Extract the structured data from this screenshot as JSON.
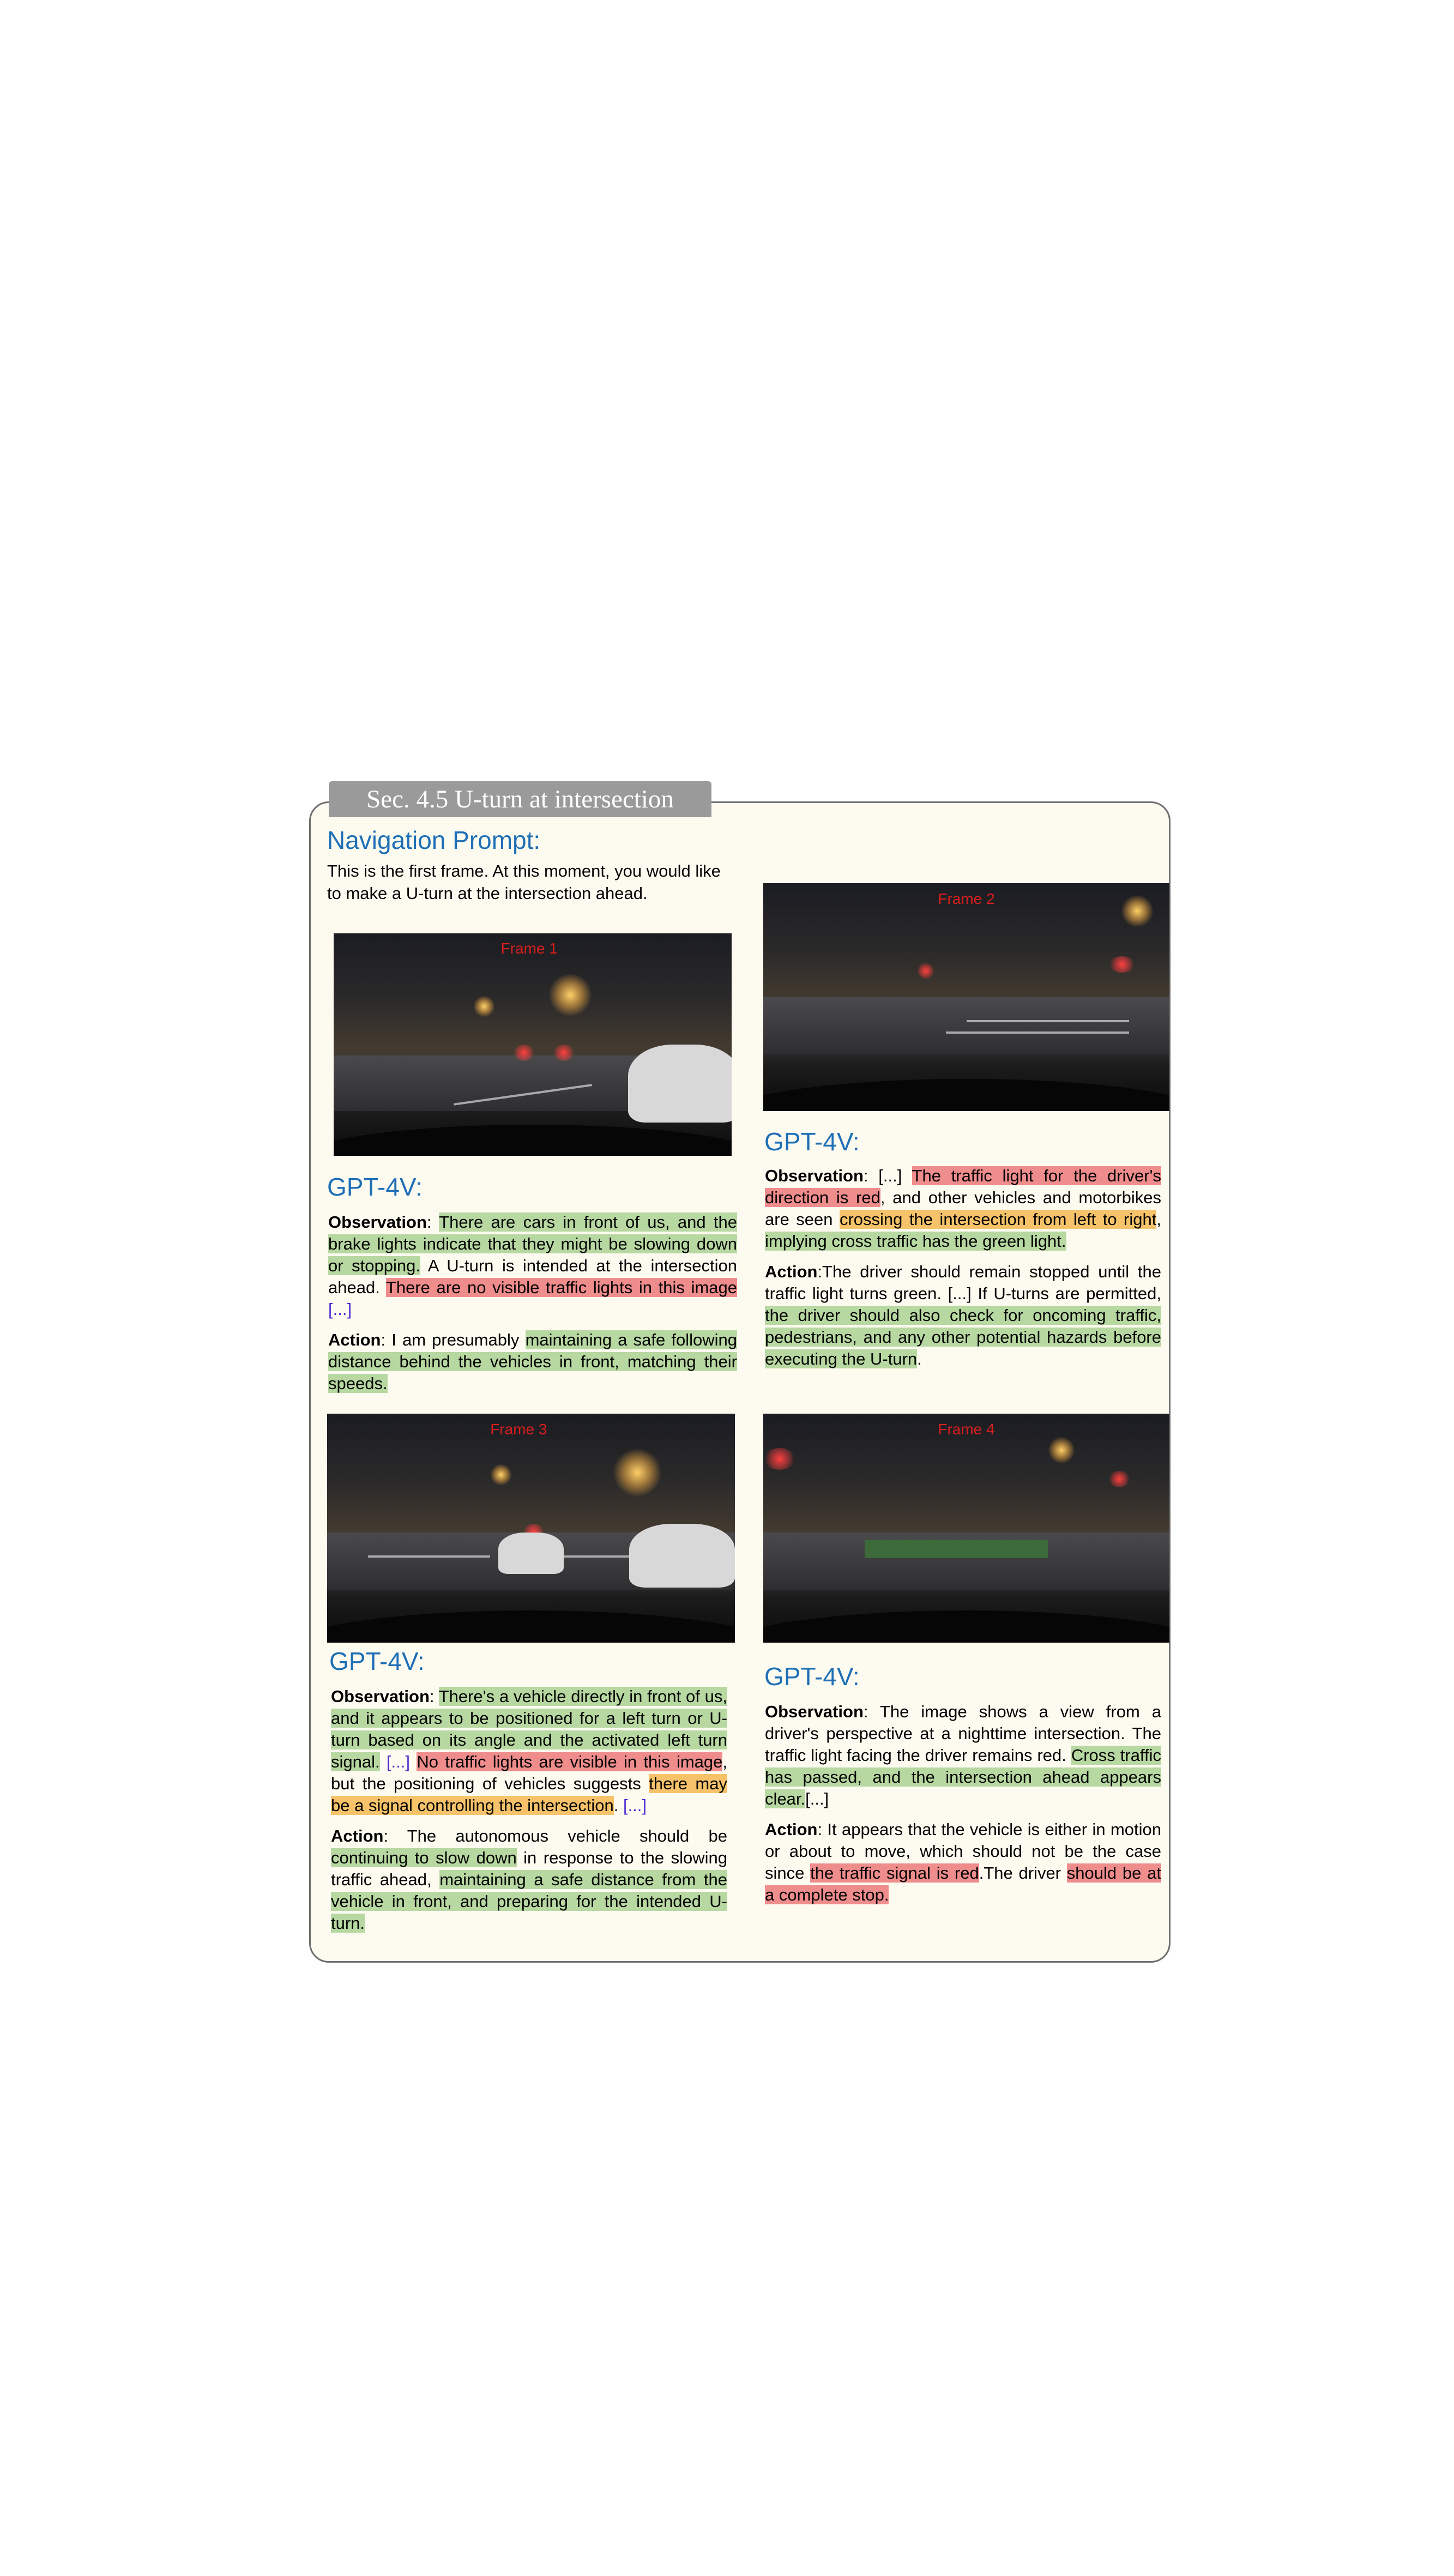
{
  "section_tab": "Sec. 4.5 U-turn at intersection",
  "nav_heading": "Navigation Prompt:",
  "prompt_text": "This is the first frame. At this moment, you would like to make a U-turn at the intersection ahead.",
  "gpt_label": "GPT-4V:",
  "frames": {
    "f1": "Frame 1",
    "f2": "Frame 2",
    "f3": "Frame 3",
    "f4": "Frame 4"
  },
  "r1": {
    "obs_label": "Observation",
    "obs": [
      ":",
      " ",
      "There are cars in front of us, and the brake lights indicate that they might be slowing down or stopping.",
      " A U-turn is intended at the intersection ahead. ",
      "There are no visible traffic lights in this image",
      " ",
      "[...]"
    ],
    "act_label": "Action",
    "act": [
      ": I am presumably ",
      "maintaining a safe following distance behind the vehicles in front, matching their speeds."
    ]
  },
  "r2": {
    "obs_label": "Observation",
    "obs": [
      ": ",
      "[...]",
      " ",
      "The traffic light for the driver's direction is red",
      ", and other vehicles and motorbikes are seen ",
      "crossing the intersection from left to right",
      ", ",
      "implying cross traffic has the green light."
    ],
    "act_label": "Action",
    "act": [
      ":The driver should remain stopped until the traffic light turns green. [...] If U-turns are permitted, ",
      "the driver should also check for oncoming traffic, pedestrians, and any other potential hazards before executing the U-turn",
      "."
    ]
  },
  "r3": {
    "obs_label": "Observation",
    "obs": [
      ": ",
      "There's a vehicle directly in front of us, and it appears to be positioned for a left turn or U-turn based on its angle and the activated left turn signal.",
      " ",
      "[...]",
      " ",
      "No traffic lights are visible in this image",
      ", but the positioning of vehicles suggests ",
      "there may be a signal controlling the intersection",
      ". ",
      "[...]"
    ],
    "act_label": "Action",
    "act": [
      ": The autonomous vehicle should be ",
      "continuing to slow down",
      " in response to the slowing traffic ahead, ",
      "maintaining a safe distance from the vehicle in front, and preparing for the intended U-turn."
    ]
  },
  "r4": {
    "obs_label": "Observation",
    "obs": [
      ": The image shows a view from a driver's perspective at a nighttime intersection. The traffic light facing the driver remains red. ",
      "Cross traffic has passed, and the intersection ahead appears clear.",
      "[...]"
    ],
    "act_label": "Action",
    "act": [
      ": It appears that the vehicle is either in motion or about to move, which should not be the case since ",
      "the traffic signal is red",
      ".The driver ",
      "should be at a complete stop."
    ]
  }
}
